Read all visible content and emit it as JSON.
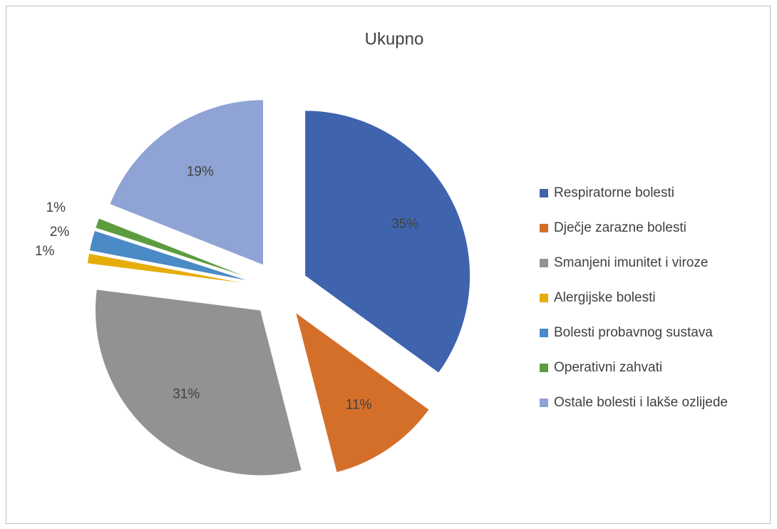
{
  "chart_data": {
    "type": "pie",
    "title": "Ukupno",
    "categories": [
      "Respiratorne bolesti",
      "Dječje zarazne bolesti",
      "Smanjeni imunitet i viroze",
      "Alergijske bolesti",
      "Bolesti probavnog sustava",
      "Operativni zahvati",
      "Ostale bolesti i lakše ozlijede"
    ],
    "values": [
      35,
      11,
      31,
      1,
      2,
      1,
      19
    ],
    "value_labels": [
      "35%",
      "11%",
      "31%",
      "1%",
      "2%",
      "1%",
      "19%"
    ],
    "colors": [
      "#3f64ad",
      "#d46f2a",
      "#929292",
      "#e6ad0a",
      "#4a8ac6",
      "#5c9c3f",
      "#8fa3d4"
    ],
    "legend": "right"
  }
}
